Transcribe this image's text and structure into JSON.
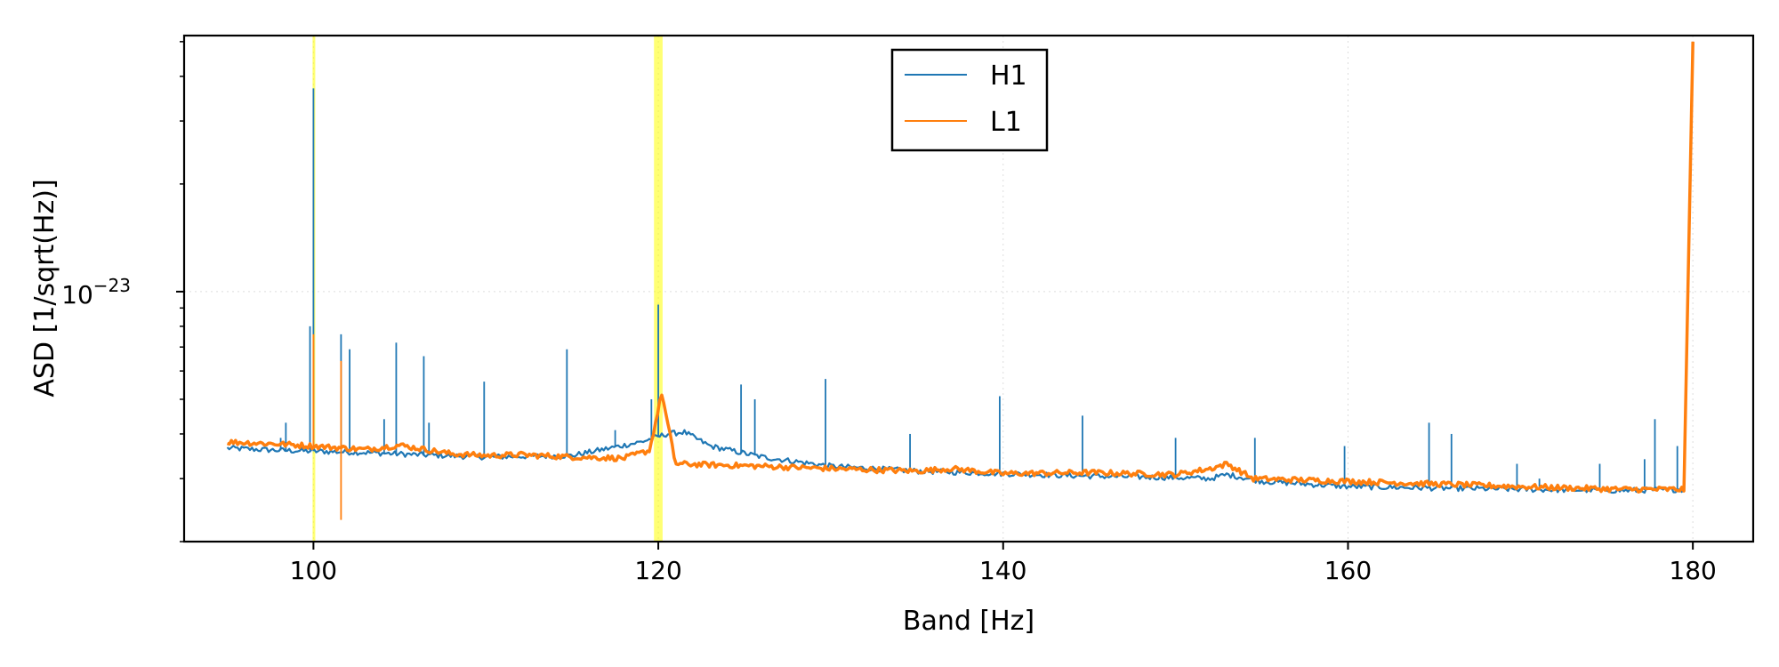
{
  "chart_data": {
    "type": "line",
    "title": "",
    "xlabel": "Band [Hz]",
    "ylabel": "ASD [1/sqrt(Hz)]",
    "x_scale": "linear",
    "y_scale": "log",
    "xlim": [
      92.5,
      183.5
    ],
    "ylim": [
      2e-24,
      5.2e-23
    ],
    "x_ticks": [
      100,
      120,
      140,
      160,
      180
    ],
    "x_tick_labels": [
      "100",
      "120",
      "140",
      "160",
      "180"
    ],
    "y_ticks": [
      1e-23
    ],
    "y_tick_base": "10",
    "y_tick_exponent": "−23",
    "grid": true,
    "legend": {
      "placement": "top-center",
      "entries": [
        "H1",
        "L1"
      ]
    },
    "colors": {
      "H1": "#1f77b4",
      "L1": "#ff7f0e",
      "highlight": "#ffff00",
      "grid": "#dddddd"
    },
    "highlight_bands": [
      {
        "x_min": 99.95,
        "x_max": 100.05
      },
      {
        "x_min": 119.75,
        "x_max": 120.25
      }
    ],
    "series": [
      {
        "name": "H1",
        "x": [
          95,
          98,
          100,
          103,
          106,
          110,
          115,
          119,
          120.5,
          121.5,
          123,
          126,
          130,
          135,
          140,
          145,
          150,
          152,
          153,
          155,
          160,
          170,
          176,
          179.5,
          180.0
        ],
        "values": [
          3.65e-24,
          3.6e-24,
          3.58e-24,
          3.55e-24,
          3.5e-24,
          3.45e-24,
          3.48e-24,
          3.8e-24,
          4e-24,
          4.05e-24,
          3.7e-24,
          3.45e-24,
          3.25e-24,
          3.15e-24,
          3.1e-24,
          3.05e-24,
          3.02e-24,
          3e-24,
          3.08e-24,
          2.95e-24,
          2.85e-24,
          2.8e-24,
          2.78e-24,
          2.8e-24,
          4.8e-23
        ],
        "spikes": [
          {
            "x": 98.1,
            "y": 3.9e-24
          },
          {
            "x": 98.4,
            "y": 4.3e-24
          },
          {
            "x": 99.8,
            "y": 8e-24
          },
          {
            "x": 100.0,
            "y": 3.7e-23
          },
          {
            "x": 101.6,
            "y": 7.6e-24
          },
          {
            "x": 102.1,
            "y": 6.9e-24
          },
          {
            "x": 104.1,
            "y": 4.4e-24
          },
          {
            "x": 104.8,
            "y": 7.2e-24
          },
          {
            "x": 106.4,
            "y": 6.6e-24
          },
          {
            "x": 106.7,
            "y": 4.3e-24
          },
          {
            "x": 109.9,
            "y": 5.6e-24
          },
          {
            "x": 114.7,
            "y": 6.9e-24
          },
          {
            "x": 117.5,
            "y": 4.1e-24
          },
          {
            "x": 119.6,
            "y": 5e-24
          },
          {
            "x": 120.0,
            "y": 9.2e-24
          },
          {
            "x": 124.8,
            "y": 5.5e-24
          },
          {
            "x": 125.6,
            "y": 5e-24
          },
          {
            "x": 129.7,
            "y": 5.7e-24
          },
          {
            "x": 134.6,
            "y": 4e-24
          },
          {
            "x": 139.8,
            "y": 5.1e-24
          },
          {
            "x": 144.6,
            "y": 4.5e-24
          },
          {
            "x": 150.0,
            "y": 3.9e-24
          },
          {
            "x": 154.6,
            "y": 3.9e-24
          },
          {
            "x": 159.8,
            "y": 3.7e-24
          },
          {
            "x": 164.7,
            "y": 4.3e-24
          },
          {
            "x": 166.0,
            "y": 4e-24
          },
          {
            "x": 169.8,
            "y": 3.3e-24
          },
          {
            "x": 171.1,
            "y": 3e-24
          },
          {
            "x": 174.6,
            "y": 3.3e-24
          },
          {
            "x": 177.2,
            "y": 3.4e-24
          },
          {
            "x": 177.8,
            "y": 4.4e-24
          },
          {
            "x": 179.1,
            "y": 3.7e-24
          },
          {
            "x": 179.5,
            "y": 3.5e-24
          }
        ]
      },
      {
        "name": "L1",
        "x": [
          95,
          98,
          100,
          103,
          105,
          108,
          110,
          112,
          115,
          118,
          119.5,
          120.2,
          121,
          123,
          126,
          130,
          135,
          137,
          140,
          145,
          150,
          152,
          153,
          154.5,
          160,
          170,
          176,
          179.5,
          180.0
        ],
        "values": [
          3.8e-24,
          3.75e-24,
          3.7e-24,
          3.62e-24,
          3.72e-24,
          3.52e-24,
          3.48e-24,
          3.5e-24,
          3.45e-24,
          3.42e-24,
          3.6e-24,
          5.2e-24,
          3.3e-24,
          3.28e-24,
          3.25e-24,
          3.2e-24,
          3.15e-24,
          3.2e-24,
          3.1e-24,
          3.12e-24,
          3.08e-24,
          3.2e-24,
          3.3e-24,
          3e-24,
          2.95e-24,
          2.85e-24,
          2.8e-24,
          2.8e-24,
          5e-23
        ],
        "spikes": [
          {
            "x": 100.0,
            "y": 7.6e-24
          },
          {
            "x": 101.6,
            "y": 6.4e-24
          },
          {
            "x": 101.6,
            "y": 2.3e-24
          }
        ]
      }
    ]
  }
}
